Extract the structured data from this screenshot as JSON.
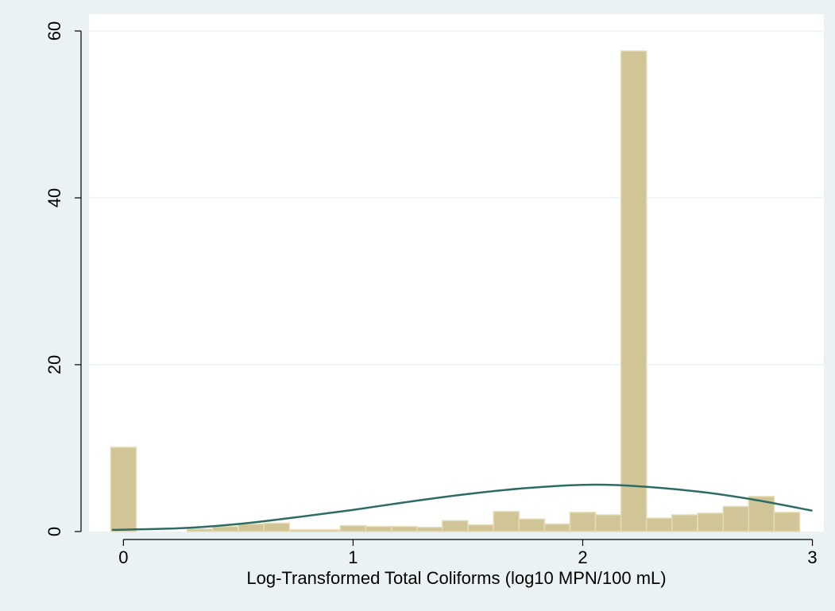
{
  "colors": {
    "background": "#eaf2f3",
    "plot_area": "#ffffff",
    "gridline": "#eaf2f3",
    "bar_fill": "#d1c497",
    "bar_edge": "#e4dcb6",
    "curve": "#2d6c64",
    "axis": "#000000"
  },
  "chart_data": {
    "type": "bar",
    "title": "",
    "xlabel": "Log-Transformed Total Coliforms (log10 MPN/100 mL)",
    "ylabel": "",
    "xlim": [
      -0.15,
      3.05
    ],
    "ylim": [
      0,
      62
    ],
    "xticks": [
      0,
      1,
      2,
      3
    ],
    "yticks": [
      0,
      20,
      40,
      60
    ],
    "grid": true,
    "legend": "none",
    "bin_width": 0.111,
    "bins": [
      {
        "x": 0.0,
        "value": 10.1
      },
      {
        "x": 0.111,
        "value": 0
      },
      {
        "x": 0.222,
        "value": 0
      },
      {
        "x": 0.333,
        "value": 0.3
      },
      {
        "x": 0.444,
        "value": 0.6
      },
      {
        "x": 0.556,
        "value": 0.9
      },
      {
        "x": 0.667,
        "value": 1.0
      },
      {
        "x": 0.778,
        "value": 0.2
      },
      {
        "x": 0.889,
        "value": 0.2
      },
      {
        "x": 1.0,
        "value": 0.7
      },
      {
        "x": 1.111,
        "value": 0.6
      },
      {
        "x": 1.222,
        "value": 0.6
      },
      {
        "x": 1.333,
        "value": 0.5
      },
      {
        "x": 1.444,
        "value": 1.3
      },
      {
        "x": 1.556,
        "value": 0.8
      },
      {
        "x": 1.667,
        "value": 2.4
      },
      {
        "x": 1.778,
        "value": 1.5
      },
      {
        "x": 1.889,
        "value": 0.9
      },
      {
        "x": 2.0,
        "value": 2.3
      },
      {
        "x": 2.111,
        "value": 2.0
      },
      {
        "x": 2.222,
        "value": 57.6
      },
      {
        "x": 2.333,
        "value": 1.6
      },
      {
        "x": 2.444,
        "value": 2.0
      },
      {
        "x": 2.556,
        "value": 2.2
      },
      {
        "x": 2.667,
        "value": 3.0
      },
      {
        "x": 2.778,
        "value": 4.2
      },
      {
        "x": 2.889,
        "value": 2.3
      }
    ],
    "curve": {
      "type": "normal_density_overlay",
      "points": [
        {
          "x": -0.05,
          "y": 0.2
        },
        {
          "x": 0.25,
          "y": 0.4
        },
        {
          "x": 0.5,
          "y": 0.9
        },
        {
          "x": 0.75,
          "y": 1.7
        },
        {
          "x": 1.0,
          "y": 2.6
        },
        {
          "x": 1.25,
          "y": 3.6
        },
        {
          "x": 1.5,
          "y": 4.5
        },
        {
          "x": 1.75,
          "y": 5.2
        },
        {
          "x": 2.0,
          "y": 5.6
        },
        {
          "x": 2.2,
          "y": 5.5
        },
        {
          "x": 2.5,
          "y": 4.8
        },
        {
          "x": 2.75,
          "y": 3.8
        },
        {
          "x": 3.0,
          "y": 2.5
        }
      ]
    }
  }
}
